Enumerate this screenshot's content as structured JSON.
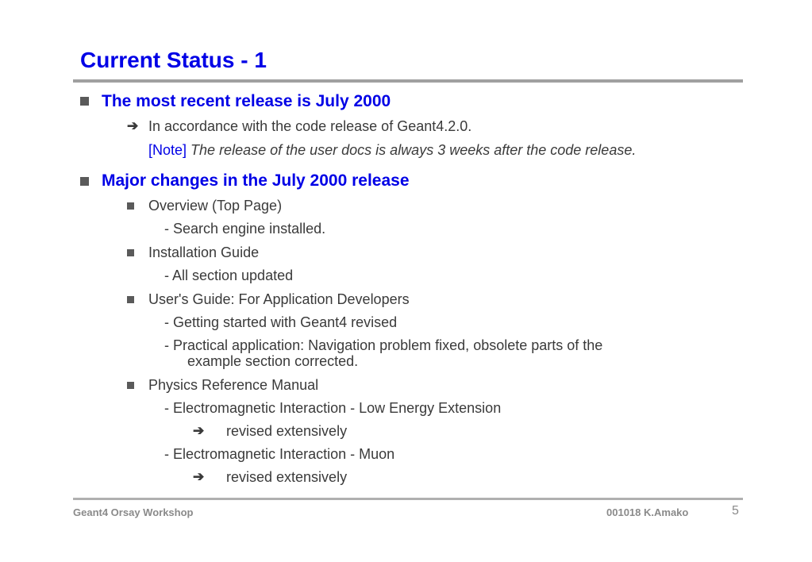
{
  "slide": {
    "title": "Current Status - 1"
  },
  "sections": [
    {
      "heading": "The most recent release is July 2000",
      "arrow_item": "In accordance with the code release of Geant4.2.0.",
      "note_tag": "[Note]",
      "note_text": "The release of the user docs is always 3 weeks after the code release."
    },
    {
      "heading": "Major changes in the July 2000 release",
      "items": [
        {
          "label": "Overview (Top Page)",
          "details": [
            "- Search engine installed."
          ]
        },
        {
          "label": "Installation Guide",
          "details": [
            "- All section updated"
          ]
        },
        {
          "label": "User's Guide: For Application Developers",
          "details": [
            "- Getting started with Geant4 revised",
            "- Practical application: Navigation problem fixed, obsolete parts of the",
            "example section corrected."
          ]
        },
        {
          "label": "Physics Reference Manual",
          "details": [
            "- Electromagnetic Interaction - Low Energy Extension",
            "revised extensively",
            "- Electromagnetic Interaction - Muon",
            "revised extensively"
          ]
        }
      ]
    }
  ],
  "footer": {
    "left": "Geant4 Orsay Workshop",
    "right": "001018  K.Amako",
    "page_number": "5"
  },
  "icons": {
    "bullet": "square-bullet-icon",
    "arrow": "right-arrow-icon"
  },
  "colors": {
    "heading_blue": "#0000e6",
    "body_text": "#3a3a3a",
    "rule_gray": "#a0a0a0",
    "footer_gray": "#8a8a8a"
  }
}
